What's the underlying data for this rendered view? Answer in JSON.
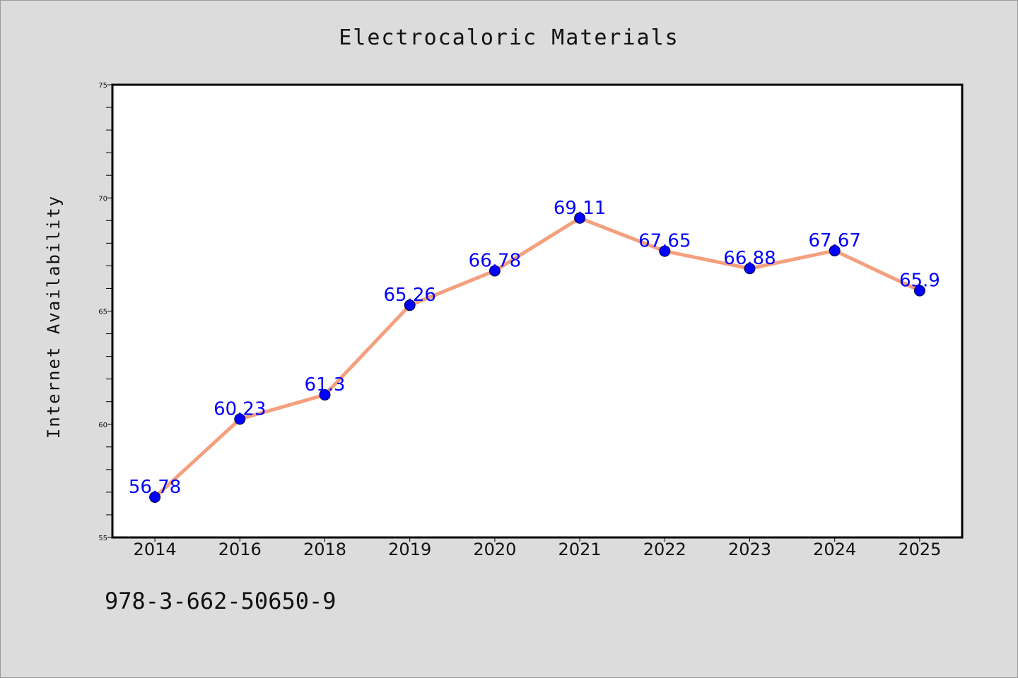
{
  "chart_data": {
    "type": "line",
    "title": "Electrocaloric Materials",
    "xlabel": "",
    "ylabel": "Internet Availability",
    "categories": [
      "2014",
      "2016",
      "2018",
      "2019",
      "2020",
      "2021",
      "2022",
      "2023",
      "2024",
      "2025"
    ],
    "series": [
      {
        "values": [
          56.78,
          60.23,
          61.3,
          65.26,
          66.78,
          69.11,
          67.65,
          66.88,
          67.67,
          65.9
        ]
      }
    ],
    "data_labels": [
      "56.78",
      "60.23",
      "61.3",
      "65.26",
      "66.78",
      "69.11",
      "67.65",
      "66.88",
      "67.67",
      "65.9"
    ],
    "ylim": [
      55,
      75
    ],
    "yticks": [
      55,
      60,
      65,
      70,
      75
    ],
    "grid": false,
    "legend": "none",
    "colors": {
      "line": "#f4a07e",
      "marker": "#0000ff",
      "label": "#0000ff",
      "background": "#dcdcdc",
      "plot_background": "#ffffff"
    }
  },
  "footer": {
    "isbn": "978-3-662-50650-9"
  }
}
